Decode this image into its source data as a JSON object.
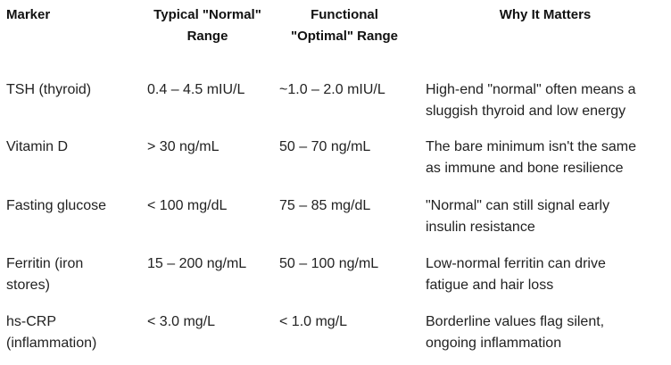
{
  "headers": {
    "marker": "Marker",
    "typical_line1": "Typical \"Normal\"",
    "typical_line2": "Range",
    "optimal_line1": "Functional",
    "optimal_line2": "\"Optimal\" Range",
    "why": "Why It Matters"
  },
  "rows": [
    {
      "marker_l1": "TSH (thyroid)",
      "marker_l2": "",
      "typical": "0.4 – 4.5 mIU/L",
      "optimal": "~1.0 – 2.0 mIU/L",
      "why_l1": "High-end \"normal\" often means a",
      "why_l2": "sluggish thyroid and low energy"
    },
    {
      "marker_l1": "Vitamin D",
      "marker_l2": "",
      "typical": "> 30 ng/mL",
      "optimal": "50 – 70 ng/mL",
      "why_l1": "The bare minimum isn't the same",
      "why_l2": "as immune and bone resilience"
    },
    {
      "marker_l1": "Fasting glucose",
      "marker_l2": "",
      "typical": "< 100 mg/dL",
      "optimal": "75 – 85 mg/dL",
      "why_l1": "\"Normal\" can still signal early",
      "why_l2": "insulin resistance"
    },
    {
      "marker_l1": "Ferritin (iron",
      "marker_l2": "stores)",
      "typical": "15 – 200 ng/mL",
      "optimal": "50 – 100 ng/mL",
      "why_l1": "Low-normal ferritin can drive",
      "why_l2": "fatigue and hair loss"
    },
    {
      "marker_l1": "hs-CRP",
      "marker_l2": "(inflammation)",
      "typical": "< 3.0 mg/L",
      "optimal": "< 1.0 mg/L",
      "why_l1": "Borderline values flag silent,",
      "why_l2": "ongoing inflammation"
    }
  ]
}
